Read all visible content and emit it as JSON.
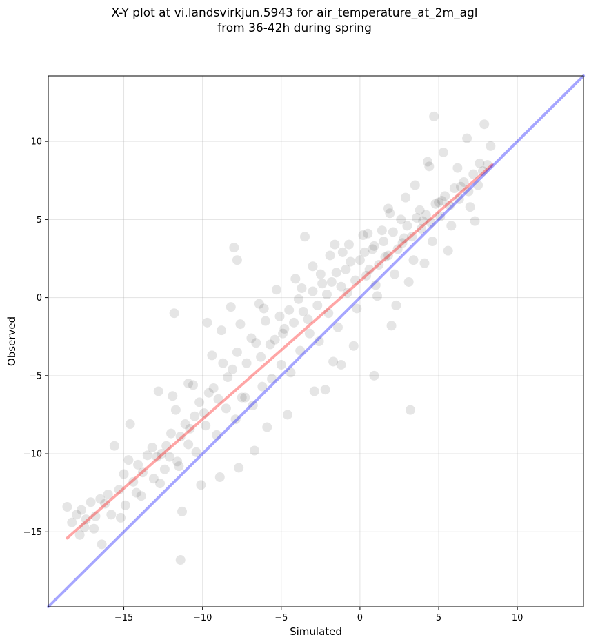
{
  "chart_data": {
    "type": "scatter",
    "title": "X-Y plot at vi.landsvirkjun.5943 for air_temperature_at_2m_agl",
    "subtitle": "from 36-42h during spring",
    "xlabel": "Simulated",
    "ylabel": "Observed",
    "xlim": [
      -19.8,
      14.2
    ],
    "ylim": [
      -19.8,
      14.2
    ],
    "xticks": [
      -15,
      -10,
      -5,
      0,
      5,
      10
    ],
    "yticks": [
      -15,
      -10,
      -5,
      0,
      5,
      10
    ],
    "xtick_labels": [
      "−15",
      "−10",
      "−5",
      "0",
      "5",
      "10"
    ],
    "ytick_labels": [
      "−15",
      "−10",
      "−5",
      "0",
      "5",
      "10"
    ],
    "grid": true,
    "point_color": "#000000",
    "point_alpha": 0.1,
    "scatter": {
      "x": [
        -18.6,
        -18.3,
        -18.0,
        -17.7,
        -17.4,
        -17.1,
        -16.8,
        -16.5,
        -16.2,
        -16.0,
        -15.6,
        -15.3,
        -15.0,
        -14.7,
        -14.4,
        -14.1,
        -13.8,
        -13.5,
        -13.2,
        -12.9,
        -12.6,
        -12.3,
        -12.0,
        -11.7,
        -11.4,
        -11.1,
        -10.8,
        -10.5,
        -10.2,
        -9.9,
        -9.6,
        -9.3,
        -9.0,
        -8.7,
        -8.4,
        -8.1,
        -7.8,
        -7.5,
        -7.2,
        -6.9,
        -6.6,
        -6.3,
        -6.0,
        -5.7,
        -5.4,
        -5.1,
        -4.8,
        -4.5,
        -4.2,
        -3.9,
        -3.6,
        -3.3,
        -3.0,
        -2.7,
        -2.4,
        -2.1,
        -1.8,
        -1.5,
        -1.2,
        -0.9,
        -0.6,
        -0.3,
        0.0,
        0.3,
        0.6,
        0.9,
        1.2,
        1.5,
        1.8,
        2.1,
        2.4,
        2.7,
        3.0,
        3.3,
        3.6,
        3.9,
        4.2,
        4.5,
        4.8,
        5.1,
        5.4,
        5.7,
        6.0,
        6.3,
        6.6,
        6.9,
        7.2,
        7.5,
        7.8,
        8.1,
        -17.8,
        -16.9,
        -15.8,
        -14.9,
        -14.2,
        -13.1,
        -12.4,
        -11.6,
        -10.9,
        -10.4,
        -9.8,
        -9.1,
        -8.5,
        -7.9,
        -7.3,
        -6.8,
        -6.2,
        -5.6,
        -5.0,
        -4.4,
        -3.8,
        -3.2,
        -2.6,
        -2.0,
        -1.4,
        -0.8,
        -0.2,
        0.4,
        1.0,
        1.6,
        2.2,
        2.8,
        3.4,
        4.0,
        4.6,
        5.2,
        5.8,
        6.4,
        7.0,
        7.6,
        -12.1,
        -11.5,
        -11.9,
        -10.9,
        -9.4,
        -8.8,
        -7.6,
        -6.4,
        -5.3,
        -4.1,
        -3.0,
        -1.9,
        -0.7,
        0.5,
        1.4,
        2.6,
        3.8,
        5.0,
        -2.2,
        -1.2,
        -0.4,
        1.1,
        2.3,
        3.1,
        4.1,
        5.6,
        7.3,
        6.2,
        4.4,
        1.8,
        -1.7,
        -2.9,
        -4.6,
        -5.9,
        -6.7,
        -7.7,
        -8.9,
        -10.1,
        -11.3,
        -12.7,
        -13.9,
        -15.2,
        -16.4,
        -17.5,
        -14.6,
        -12.8,
        -10.6,
        -9.7,
        -8.2,
        -6.1,
        -4.9,
        -3.7,
        -2.5,
        -1.1,
        0.2,
        0.8,
        1.9,
        2.9,
        3.5,
        4.3,
        5.3,
        6.8,
        7.9,
        8.3,
        -11.8,
        -11.4,
        -7.8,
        -8.0,
        -3.5,
        -1.6,
        0.9,
        2.0,
        3.2,
        4.7
      ],
      "y": [
        -13.4,
        -14.4,
        -13.9,
        -13.6,
        -14.2,
        -13.1,
        -14.0,
        -12.9,
        -13.2,
        -12.6,
        -9.5,
        -12.3,
        -11.3,
        -10.4,
        -11.8,
        -10.7,
        -11.2,
        -10.1,
        -9.6,
        -10.2,
        -10.0,
        -9.5,
        -8.7,
        -7.2,
        -8.9,
        -8.1,
        -8.4,
        -7.6,
        -6.7,
        -7.4,
        -6.1,
        -5.8,
        -6.5,
        -4.2,
        -5.1,
        -4.6,
        -3.5,
        -6.4,
        -4.2,
        -2.6,
        -2.9,
        -3.8,
        -1.5,
        -3.0,
        -2.7,
        -1.2,
        -2.0,
        -0.8,
        -1.6,
        -0.1,
        -0.9,
        -1.4,
        0.4,
        -0.5,
        0.9,
        0.2,
        1.0,
        1.6,
        0.7,
        1.8,
        2.3,
        1.1,
        2.4,
        2.9,
        1.8,
        3.3,
        2.1,
        3.6,
        2.7,
        4.2,
        3.1,
        3.5,
        4.6,
        3.9,
        5.1,
        4.4,
        5.3,
        4.8,
        6.0,
        5.2,
        6.5,
        5.9,
        7.0,
        6.3,
        7.4,
        6.8,
        7.9,
        7.2,
        8.1,
        8.5,
        -15.2,
        -14.8,
        -13.9,
        -13.3,
        -12.5,
        -11.6,
        -11.0,
        -10.5,
        -9.4,
        -9.9,
        -8.2,
        -8.8,
        -7.1,
        -7.8,
        -6.4,
        -6.9,
        -5.7,
        -5.2,
        -4.3,
        -4.8,
        -3.4,
        -2.3,
        -2.8,
        -1.0,
        -1.9,
        0.3,
        -0.7,
        1.4,
        0.8,
        2.6,
        1.5,
        3.8,
        2.4,
        4.9,
        3.6,
        6.2,
        4.6,
        7.1,
        5.8,
        8.6,
        -10.2,
        -10.8,
        -6.3,
        -5.5,
        -3.7,
        -2.1,
        -1.7,
        -0.4,
        0.5,
        1.2,
        2.0,
        2.7,
        3.4,
        4.1,
        4.3,
        5.0,
        5.6,
        6.1,
        -5.9,
        -4.3,
        -3.1,
        0.1,
        -0.5,
        1.0,
        2.2,
        3.0,
        4.9,
        8.3,
        8.4,
        5.7,
        -4.1,
        -6.0,
        -7.5,
        -8.3,
        -9.8,
        -10.9,
        -11.5,
        -12.0,
        -13.7,
        -11.9,
        -12.7,
        -14.1,
        -15.8,
        -14.7,
        -8.1,
        -6.0,
        -5.6,
        -1.6,
        -0.6,
        -0.7,
        -2.3,
        0.6,
        1.5,
        2.9,
        4.0,
        3.1,
        5.4,
        6.4,
        7.2,
        8.7,
        9.3,
        10.2,
        11.1,
        9.7,
        -1.0,
        -16.8,
        2.4,
        3.2,
        3.9,
        3.4,
        -5.0,
        -1.8,
        -7.2,
        11.6
      ]
    },
    "lines": [
      {
        "color": "#ff0000",
        "alpha": 0.35,
        "x": [
          -18.6,
          8.4
        ],
        "y": [
          -15.4,
          8.5
        ]
      },
      {
        "color": "#0000ff",
        "alpha": 0.35,
        "x": [
          -19.8,
          14.2
        ],
        "y": [
          -19.8,
          14.2
        ]
      }
    ]
  }
}
